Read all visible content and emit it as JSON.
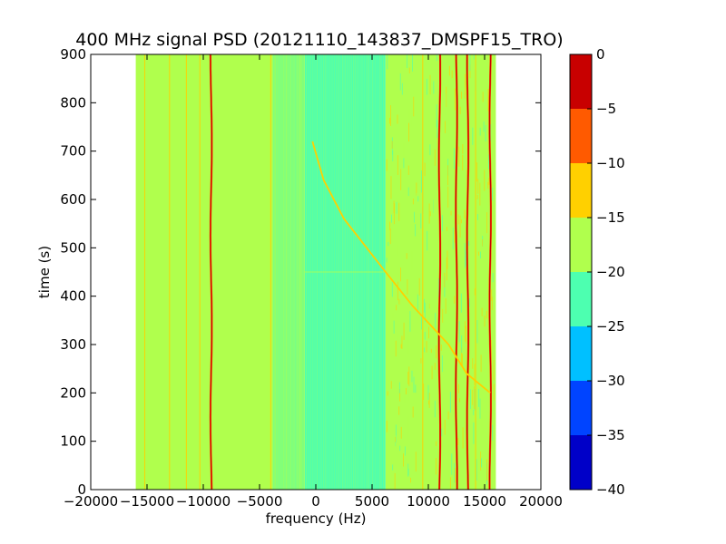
{
  "chart_data": {
    "type": "heatmap",
    "title": "400 MHz signal PSD (20121110_143837_DMSPF15_TRO)",
    "xlabel": "frequency (Hz)",
    "ylabel": "time (s)",
    "xlim": [
      -20000,
      20000
    ],
    "ylim": [
      0,
      900
    ],
    "xticks": [
      -20000,
      -15000,
      -10000,
      -5000,
      0,
      5000,
      10000,
      15000,
      20000
    ],
    "xtick_labels": [
      "−20000",
      "−15000",
      "−10000",
      "−5000",
      "0",
      "5000",
      "10000",
      "15000",
      "20000"
    ],
    "yticks": [
      0,
      100,
      200,
      300,
      400,
      500,
      600,
      700,
      800,
      900
    ],
    "ytick_labels": [
      "0",
      "100",
      "200",
      "300",
      "400",
      "500",
      "600",
      "700",
      "800",
      "900"
    ],
    "data_x_extent": [
      -16000,
      16000
    ],
    "colorbar": {
      "range": [
        -40,
        0
      ],
      "ticks": [
        0,
        -5,
        -10,
        -15,
        -20,
        -25,
        -30,
        -35,
        -40
      ],
      "tick_labels": [
        "0",
        "−5",
        "−10",
        "−15",
        "−20",
        "−25",
        "−30",
        "−35",
        "−40"
      ],
      "levels": [
        {
          "from": -40,
          "to": -35,
          "color": "#0000c8"
        },
        {
          "from": -35,
          "to": -30,
          "color": "#0044ff"
        },
        {
          "from": -30,
          "to": -25,
          "color": "#00c0ff"
        },
        {
          "from": -25,
          "to": -20,
          "color": "#4dffb0"
        },
        {
          "from": -20,
          "to": -15,
          "color": "#b0ff4d"
        },
        {
          "from": -15,
          "to": -10,
          "color": "#ffd000"
        },
        {
          "from": -10,
          "to": -5,
          "color": "#ff5a00"
        },
        {
          "from": -5,
          "to": 0,
          "color": "#c80000"
        }
      ]
    },
    "regions": [
      {
        "x": [
          -16000,
          -1000
        ],
        "level_db": -17.5
      },
      {
        "x": [
          -1000,
          6200
        ],
        "level_db": -22.5
      },
      {
        "x": [
          6200,
          16000
        ],
        "level_db": -17.5
      }
    ],
    "strong_carriers_hz": [
      -9300,
      11000,
      12500,
      13500,
      15500
    ],
    "weak_lines_hz": [
      -15200,
      -13000,
      -11500,
      -10300,
      -4000,
      9500,
      14200
    ],
    "doppler_track": [
      {
        "t": 720,
        "f": -300
      },
      {
        "t": 640,
        "f": 700
      },
      {
        "t": 560,
        "f": 2500
      },
      {
        "t": 450,
        "f": 6200
      },
      {
        "t": 380,
        "f": 8600
      },
      {
        "t": 300,
        "f": 11800
      },
      {
        "t": 240,
        "f": 13400
      },
      {
        "t": 200,
        "f": 15500
      }
    ]
  }
}
